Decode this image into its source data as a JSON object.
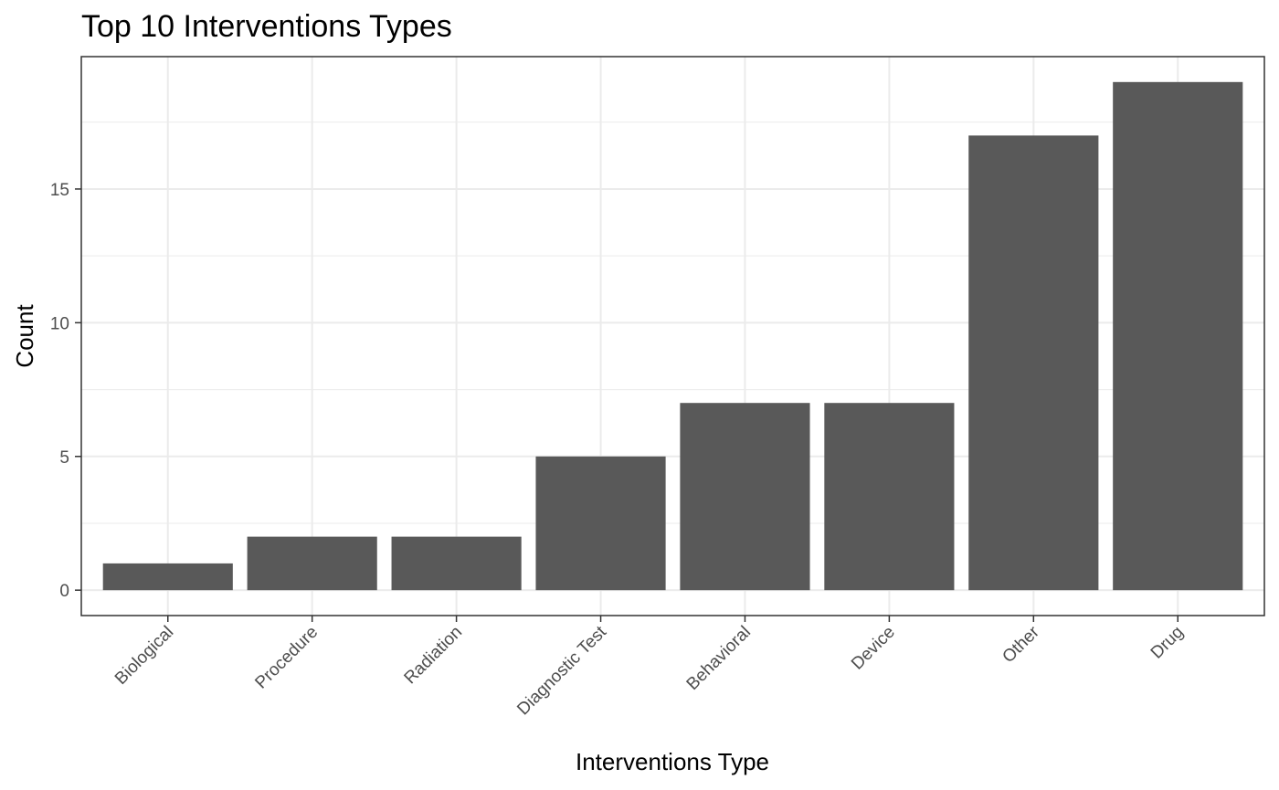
{
  "chart_data": {
    "type": "bar",
    "title": "Top 10 Interventions Types",
    "xlabel": "Interventions Type",
    "ylabel": "Count",
    "categories": [
      "Biological",
      "Procedure",
      "Radiation",
      "Diagnostic Test",
      "Behavioral",
      "Device",
      "Other",
      "Drug"
    ],
    "values": [
      1,
      2,
      2,
      5,
      7,
      7,
      17,
      19
    ],
    "ylim": [
      -0.95,
      19.95
    ],
    "yticks": [
      0,
      5,
      10,
      15
    ],
    "ytick_labels": [
      "0",
      "5",
      "10",
      "15"
    ],
    "grid": true,
    "bar_color": "#595959",
    "legend": "none"
  }
}
